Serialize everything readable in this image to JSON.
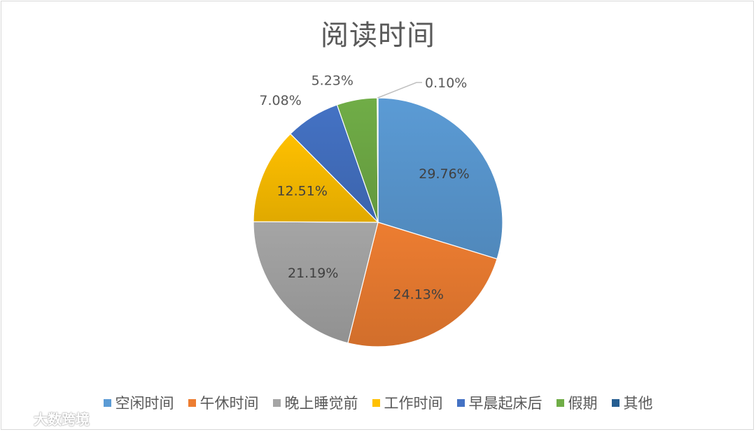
{
  "chart_data": {
    "type": "pie",
    "title": "阅读时间",
    "legend_position": "bottom",
    "categories": [
      "空闲时间",
      "午休时间",
      "晚上睡觉前",
      "工作时间",
      "早晨起床后",
      "假期",
      "其他"
    ],
    "values": [
      29.76,
      24.13,
      21.19,
      12.51,
      7.08,
      5.23,
      0.1
    ],
    "labels": [
      "29.76%",
      "24.13%",
      "21.19%",
      "12.51%",
      "7.08%",
      "5.23%",
      "0.10%"
    ],
    "colors": [
      "#5B9BD5",
      "#ED7D31",
      "#A5A5A5",
      "#FFC000",
      "#4472C4",
      "#70AD47",
      "#255E91"
    ]
  },
  "watermark": {
    "text": "大数跨境"
  }
}
